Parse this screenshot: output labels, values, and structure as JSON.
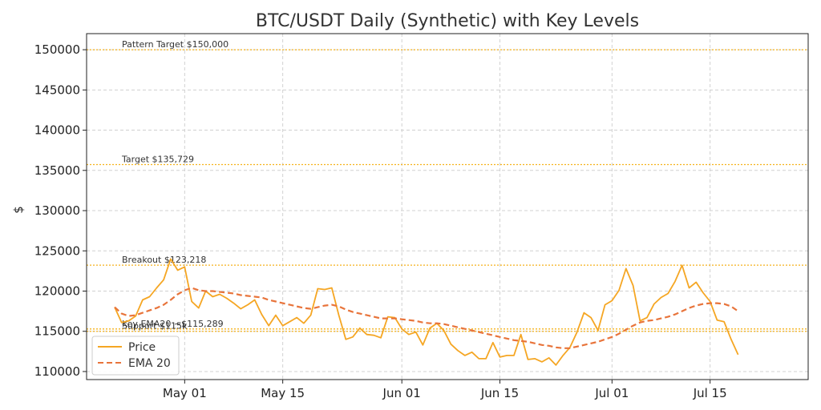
{
  "chart_data": {
    "type": "line",
    "title": "BTC/USDT Daily (Synthetic) with Key Levels",
    "xlabel": "",
    "ylabel": "$",
    "x_start": "2025-04-21",
    "x_range": [
      "2025-04-17",
      "2025-07-29"
    ],
    "ylim": [
      109000,
      152000
    ],
    "yticks": [
      110000,
      115000,
      120000,
      125000,
      130000,
      135000,
      140000,
      145000,
      150000
    ],
    "xticks": [
      {
        "date": "2025-05-01",
        "label": "May 01"
      },
      {
        "date": "2025-05-15",
        "label": "May 15"
      },
      {
        "date": "2025-06-01",
        "label": "Jun 01"
      },
      {
        "date": "2025-06-15",
        "label": "Jun 15"
      },
      {
        "date": "2025-07-01",
        "label": "Jul 01"
      },
      {
        "date": "2025-07-15",
        "label": "Jul 15"
      }
    ],
    "grid": true,
    "legend_position": "lower-left",
    "colors": {
      "price": "#f5a623",
      "ema": "#e8743b",
      "level": "#f5b21b"
    },
    "series": [
      {
        "name": "Price",
        "style": "solid",
        "values": [
          118000,
          116100,
          116300,
          116900,
          118900,
          119300,
          120400,
          121400,
          124000,
          122600,
          123000,
          118700,
          117900,
          120000,
          119300,
          119600,
          119100,
          118500,
          117800,
          118300,
          118900,
          117100,
          115700,
          117000,
          115700,
          116200,
          116700,
          116000,
          117000,
          120300,
          120200,
          120400,
          117000,
          114000,
          114300,
          115400,
          114600,
          114500,
          114200,
          116800,
          116700,
          115300,
          114600,
          114900,
          113300,
          115400,
          116000,
          115100,
          113400,
          112600,
          112000,
          112400,
          111600,
          111600,
          113600,
          111800,
          112000,
          112000,
          114600,
          111500,
          111600,
          111200,
          111700,
          110800,
          112000,
          113000,
          114900,
          117300,
          116700,
          115100,
          118300,
          118800,
          120100,
          122800,
          120700,
          116300,
          116700,
          118400,
          119200,
          119700,
          121200,
          123200,
          120400,
          121100,
          119800,
          118700,
          116400,
          116200,
          114000,
          112100
        ]
      },
      {
        "name": "EMA 20",
        "style": "dashed",
        "values": [
          118000,
          117200,
          116900,
          117000,
          117300,
          117600,
          117900,
          118300,
          118900,
          119600,
          120100,
          120400,
          120100,
          120000,
          120000,
          119900,
          119800,
          119700,
          119500,
          119400,
          119300,
          119200,
          118900,
          118700,
          118500,
          118300,
          118100,
          117900,
          117800,
          118000,
          118200,
          118300,
          118100,
          117700,
          117400,
          117200,
          117000,
          116800,
          116600,
          116600,
          116600,
          116500,
          116400,
          116300,
          116100,
          116000,
          116000,
          115900,
          115700,
          115500,
          115300,
          115100,
          114900,
          114700,
          114500,
          114300,
          114100,
          113900,
          113800,
          113700,
          113500,
          113300,
          113200,
          113000,
          112900,
          112900,
          113100,
          113300,
          113500,
          113700,
          114000,
          114300,
          114700,
          115200,
          115700,
          116100,
          116300,
          116400,
          116600,
          116800,
          117100,
          117500,
          117900,
          118200,
          118400,
          118500,
          118500,
          118400,
          118100,
          117500
        ]
      }
    ],
    "levels": [
      {
        "label": "Pattern Target $150,000",
        "value": 150000
      },
      {
        "label": "Target $135,729",
        "value": 135729
      },
      {
        "label": "Breakout $123,218",
        "value": 123218
      },
      {
        "label": "Key EMA20 ~$115,289",
        "value": 115289
      },
      {
        "label": "Support $115k",
        "value": 115000
      }
    ]
  }
}
